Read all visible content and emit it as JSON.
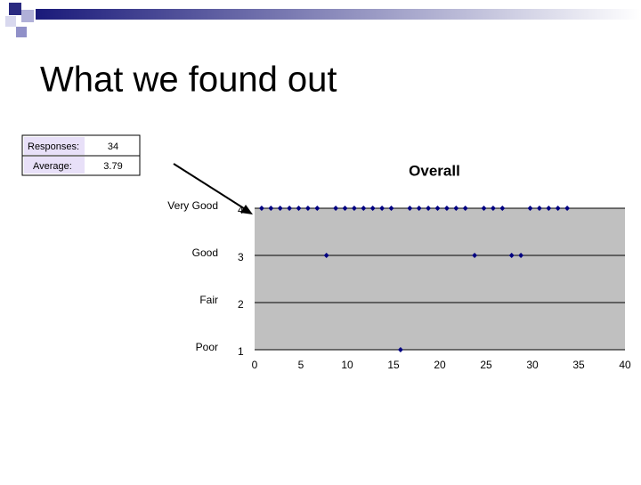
{
  "slide": {
    "title": "What we found out",
    "table": {
      "rows": [
        [
          "Responses:",
          34
        ],
        [
          "Average:",
          3.79
        ]
      ]
    }
  },
  "chart_data": {
    "type": "scatter",
    "title": "Overall",
    "x": [
      1,
      2,
      3,
      4,
      5,
      6,
      7,
      8,
      9,
      10,
      11,
      12,
      13,
      14,
      15,
      16,
      17,
      18,
      19,
      20,
      21,
      22,
      23,
      24,
      25,
      26,
      27,
      28,
      29,
      30,
      31,
      32,
      33,
      34
    ],
    "values": [
      4,
      4,
      4,
      4,
      4,
      4,
      4,
      3,
      4,
      4,
      4,
      4,
      4,
      4,
      4,
      1,
      4,
      4,
      4,
      4,
      4,
      4,
      4,
      3,
      4,
      4,
      4,
      3,
      3,
      4,
      4,
      4,
      4,
      4
    ],
    "color": "#000080",
    "xlim": [
      0,
      40
    ],
    "xticks": [
      0,
      5,
      10,
      15,
      20,
      25,
      30,
      35,
      40
    ],
    "ylim": [
      1,
      4
    ],
    "yticks": [
      1,
      2,
      3,
      4
    ],
    "rating_labels": [
      "Poor",
      "Fair",
      "Good",
      "Very Good"
    ],
    "grid": true
  }
}
